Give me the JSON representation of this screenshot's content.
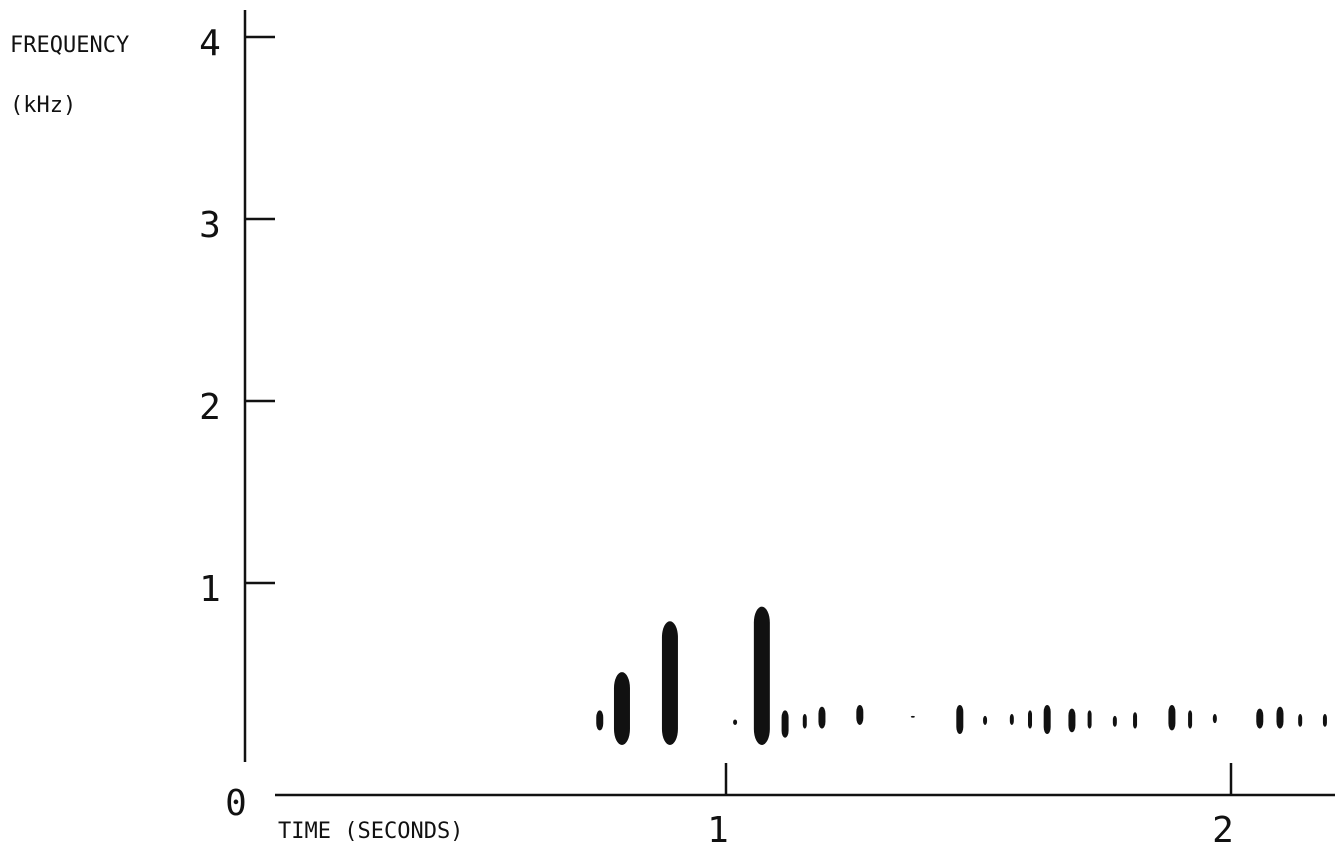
{
  "chart_data": {
    "type": "spectrogram",
    "y_label_line1": "FREQUENCY",
    "y_label_line2": "(kHz)",
    "x_label": "TIME (SECONDS)",
    "ylim": [
      0,
      4.15
    ],
    "yticks": [
      0,
      1,
      2,
      3,
      4
    ],
    "xlim": [
      0,
      2.2
    ],
    "xticks": [
      1,
      2
    ],
    "color": "#111111",
    "x": [
      0.75,
      0.794,
      0.889,
      1.018,
      1.071,
      1.117,
      1.156,
      1.19,
      1.265,
      1.37,
      1.463,
      1.513,
      1.566,
      1.602,
      1.636,
      1.685,
      1.72,
      1.77,
      1.81,
      1.883,
      1.919,
      1.968,
      2.057,
      2.097,
      2.137,
      2.186
    ],
    "low": [
      0.19,
      0.11,
      0.11,
      0.22,
      0.11,
      0.15,
      0.2,
      0.2,
      0.22,
      0.26,
      0.17,
      0.22,
      0.22,
      0.2,
      0.17,
      0.18,
      0.2,
      0.21,
      0.2,
      0.19,
      0.2,
      0.23,
      0.2,
      0.2,
      0.21,
      0.21
    ],
    "high": [
      0.3,
      0.51,
      0.79,
      0.25,
      0.87,
      0.3,
      0.28,
      0.32,
      0.33,
      0.27,
      0.33,
      0.27,
      0.28,
      0.3,
      0.33,
      0.31,
      0.3,
      0.27,
      0.29,
      0.33,
      0.3,
      0.28,
      0.31,
      0.32,
      0.28,
      0.28
    ]
  }
}
